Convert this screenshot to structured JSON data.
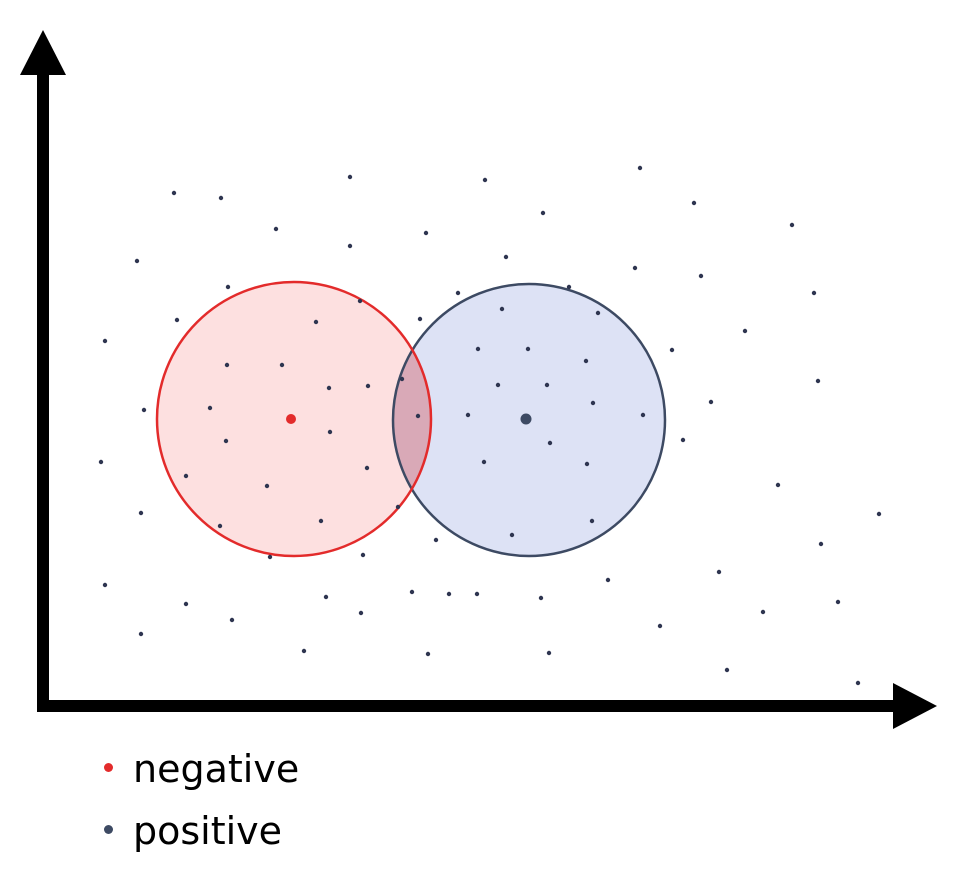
{
  "diagram": {
    "colors": {
      "negative": "#e32b2b",
      "negative_fill": "#fde0e0",
      "positive": "#3d4a63",
      "positive_fill": "#dde2f5",
      "overlap_fill": "#d9a9b7",
      "point": "#2e3550",
      "axis": "#000000"
    },
    "clusters": [
      {
        "name": "negative",
        "color_key": "negative"
      },
      {
        "name": "positive",
        "color_key": "positive"
      }
    ]
  },
  "legend": {
    "items": [
      {
        "label": "negative",
        "color": "#e32b2b"
      },
      {
        "label": "positive",
        "color": "#3d4a63"
      }
    ]
  }
}
